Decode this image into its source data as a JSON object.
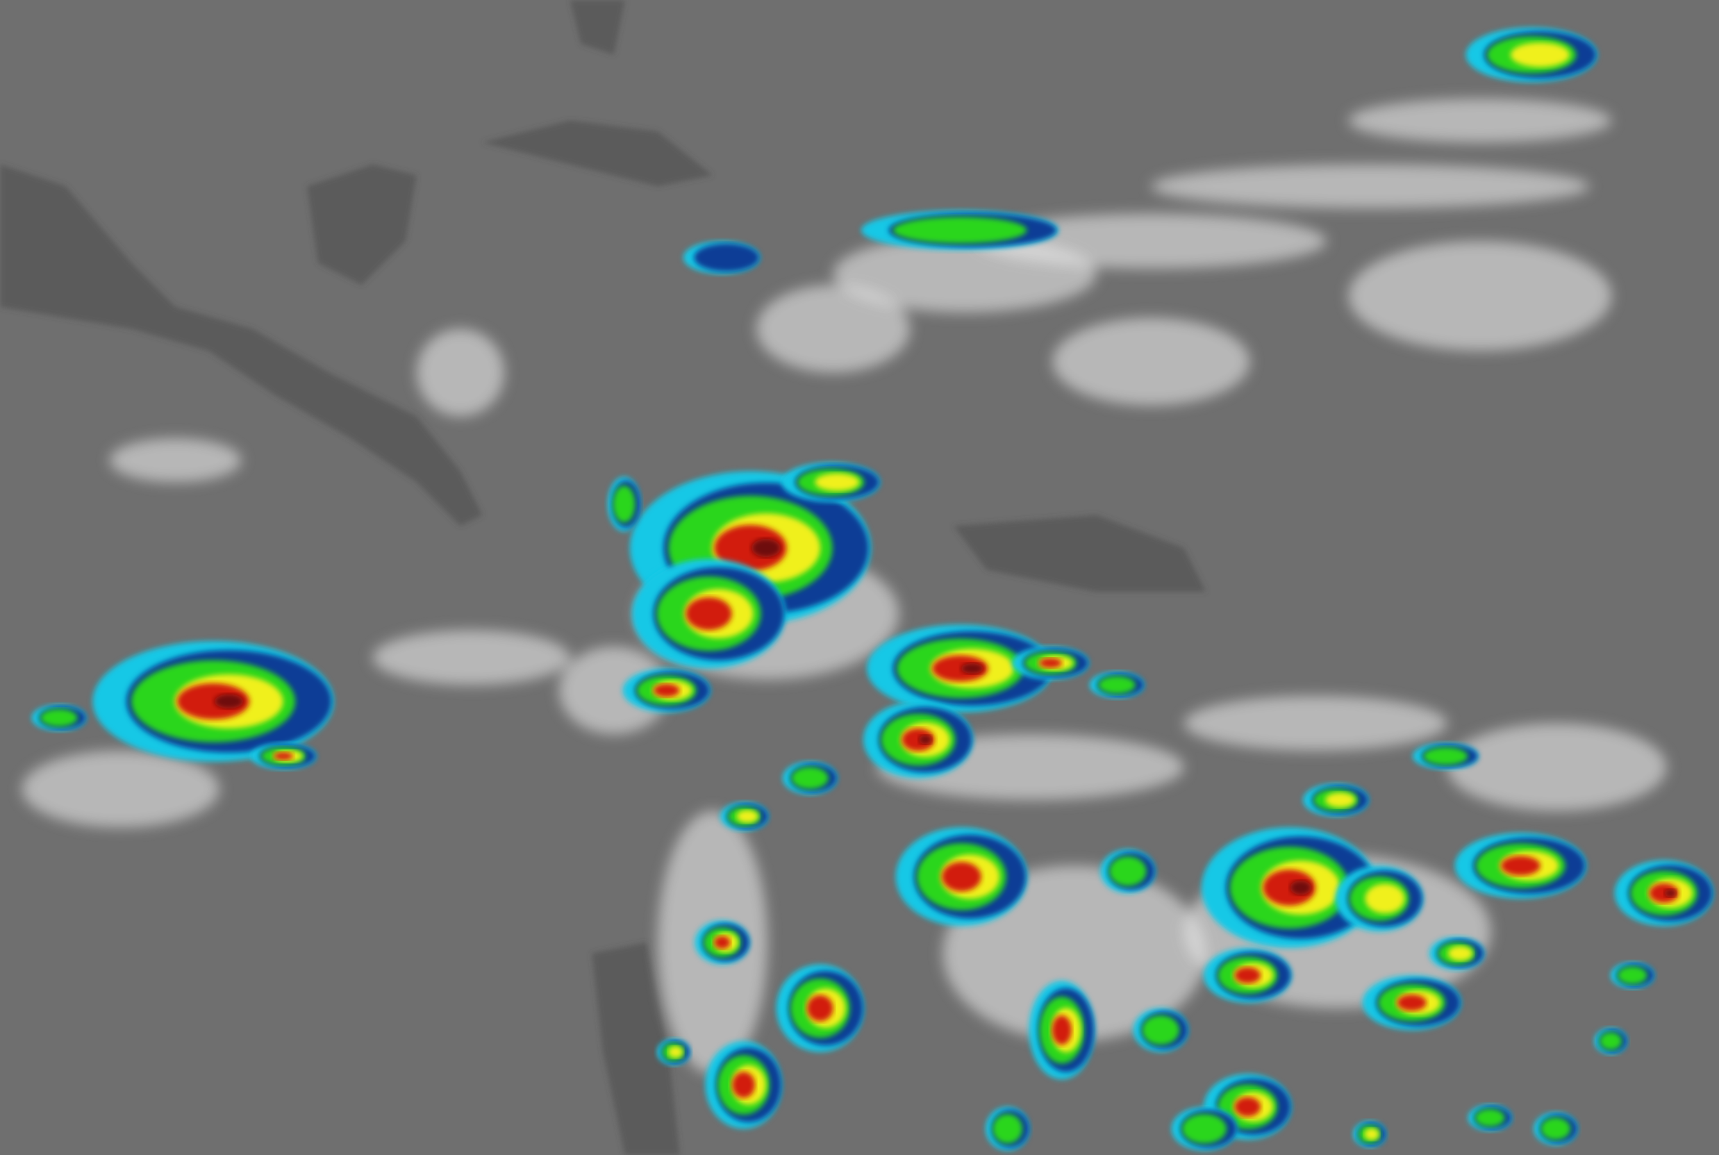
{
  "image": {
    "kind": "enhanced infrared satellite imagery",
    "colors": {
      "ocean_background": "#6f6f6f",
      "land": "#4a4a4a",
      "cloud_cold": "#e8e8e8",
      "enhancement_cyan": "#19c8e6",
      "enhancement_blue": "#0a3c96",
      "enhancement_green": "#2ad61e",
      "enhancement_yellow": "#f0f01e",
      "enhancement_red": "#d21e0a",
      "enhancement_darkred": "#6e0a0a"
    }
  }
}
